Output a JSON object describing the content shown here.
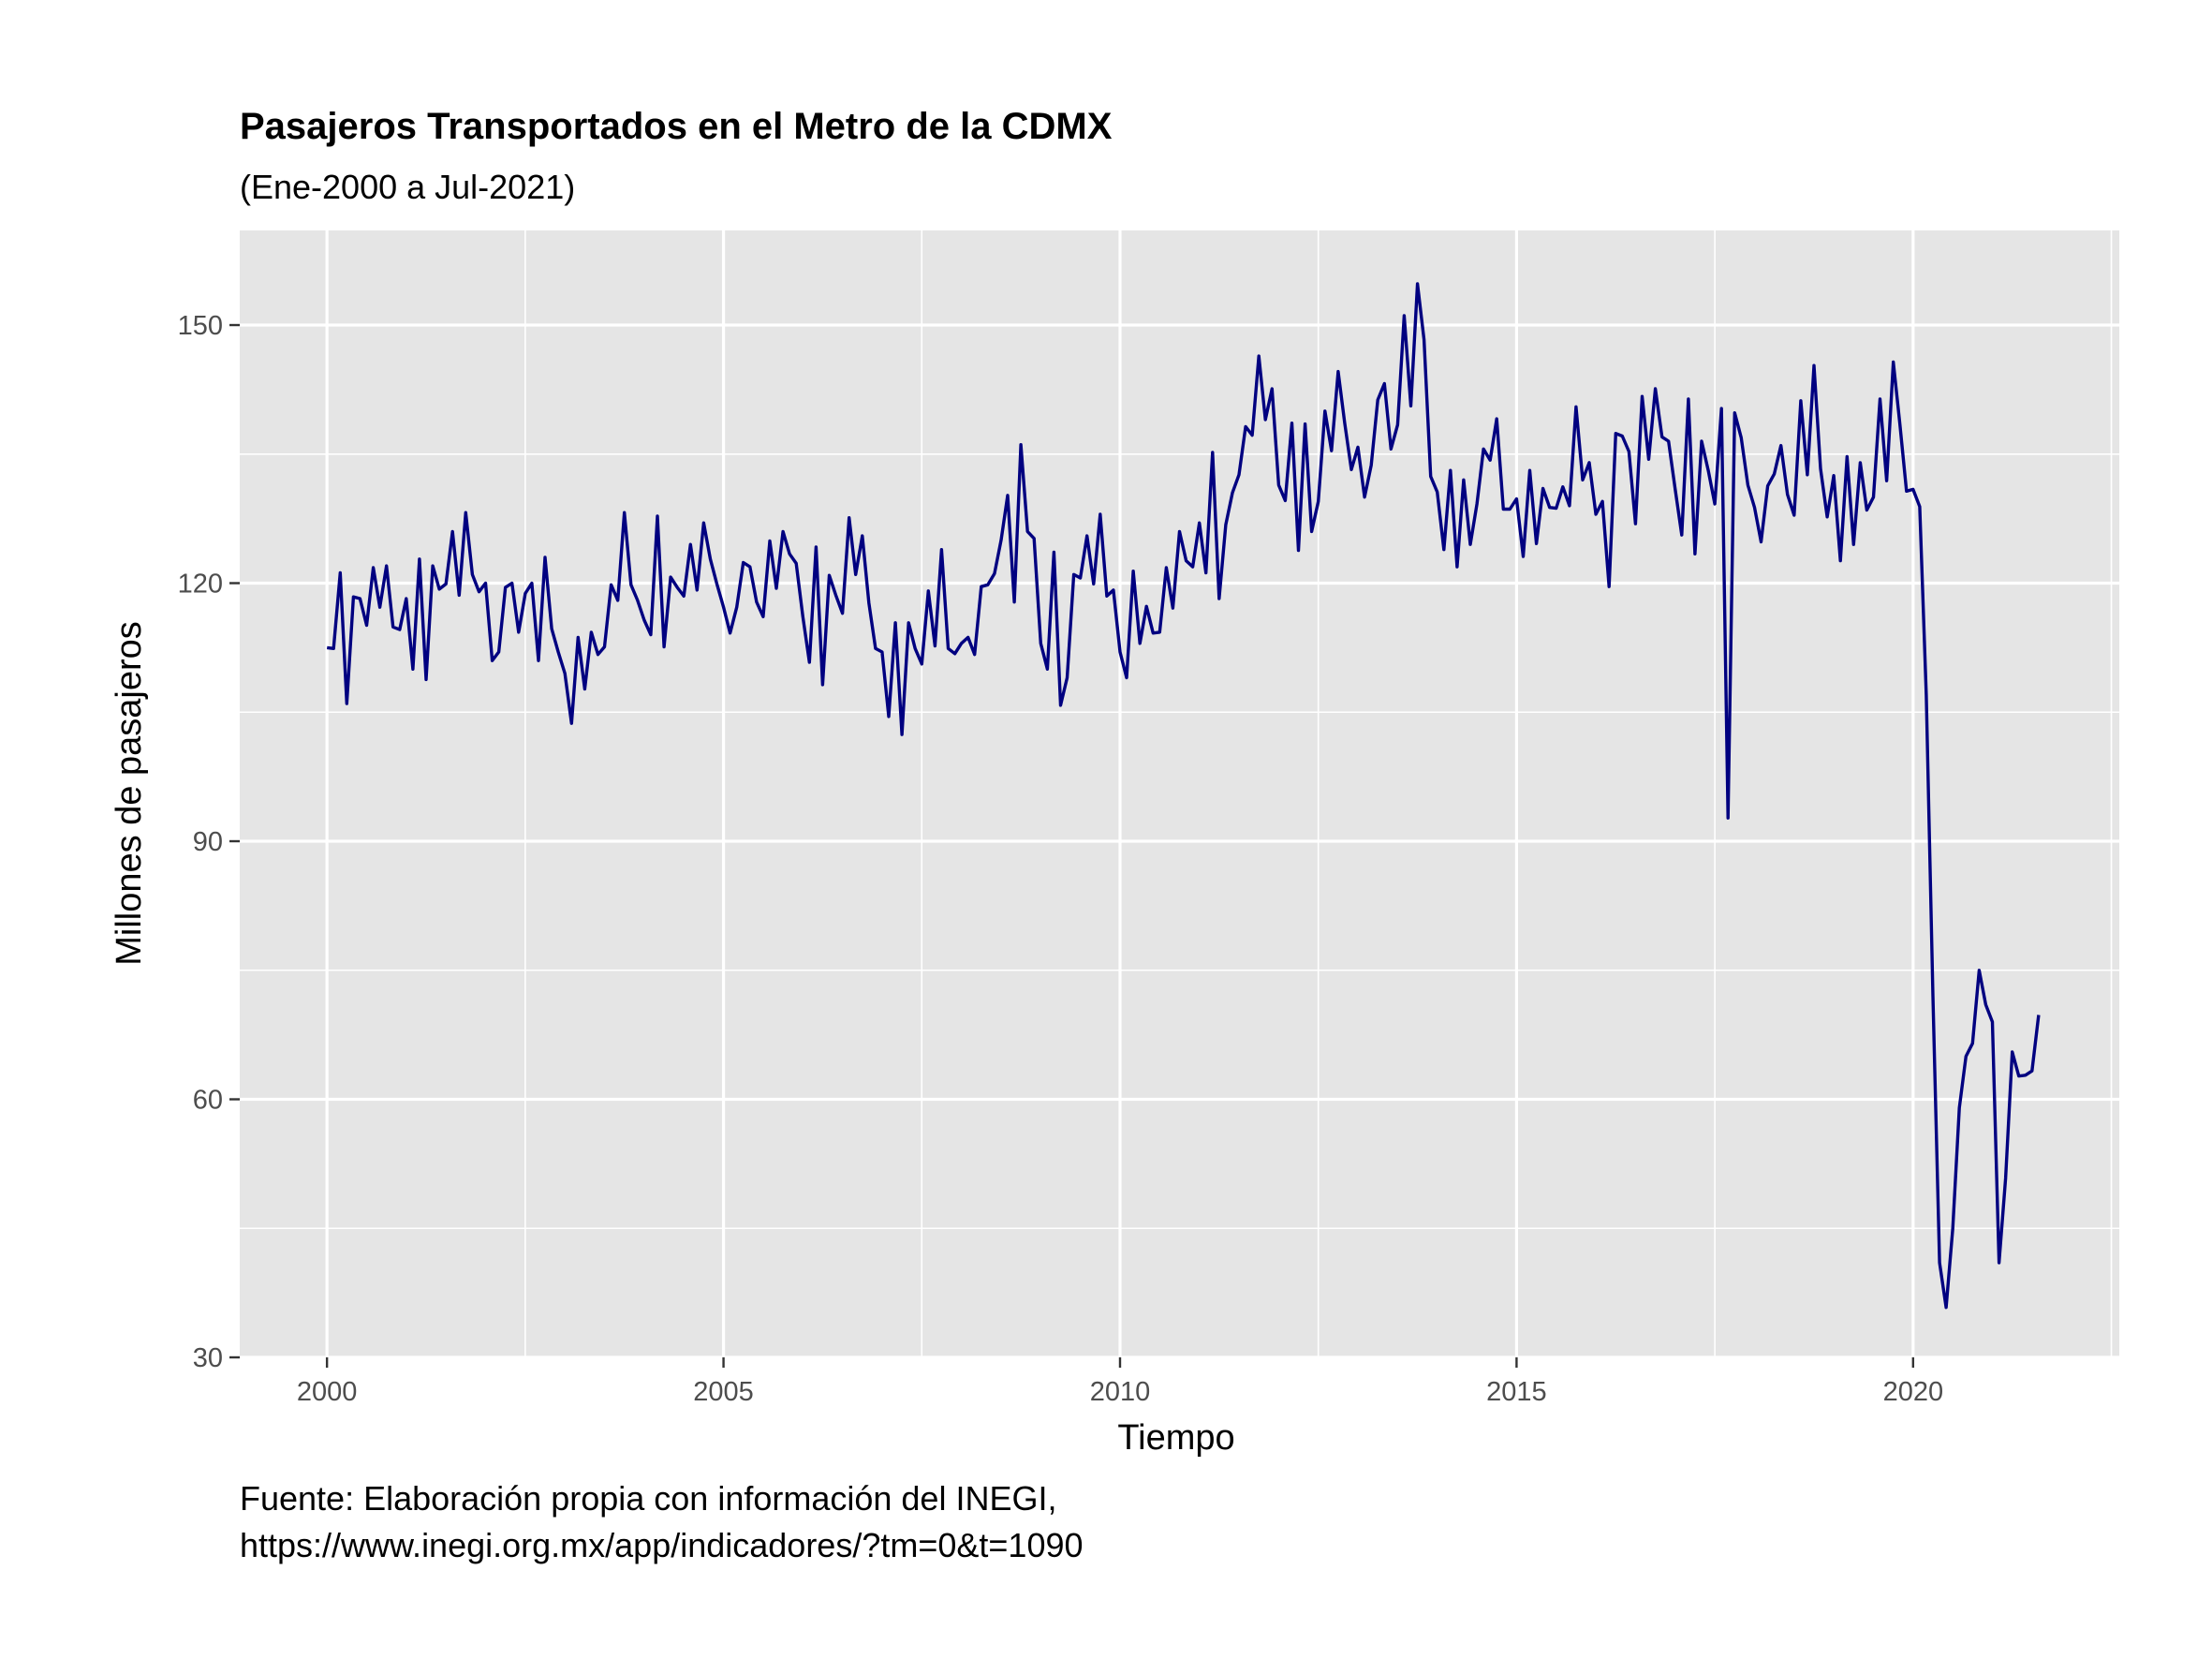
{
  "chart_data": {
    "type": "line",
    "title": "Pasajeros Transportados en el Metro de la CDMX",
    "subtitle": "(Ene-2000 a Jul-2021)",
    "xlabel": "Tiempo",
    "ylabel": "Millones de pasajeros",
    "caption_lines": [
      "Fuente: Elaboración propia con información del INEGI,",
      "https://www.inegi.org.mx/app/indicadores/?tm=0&t=1090"
    ],
    "x_ticks": [
      "2000",
      "2005",
      "2010",
      "2015",
      "2020"
    ],
    "y_ticks": [
      "30",
      "60",
      "90",
      "120",
      "150"
    ],
    "xlim": [
      1998.9,
      2022.6
    ],
    "ylim": [
      30,
      161
    ],
    "grid": true,
    "background": "#e5e5e5",
    "line_color": "#000080",
    "x_start": "2000-01",
    "x_end": "2021-07",
    "frequency": "monthly",
    "y": [
      112.5,
      112.4,
      121.2,
      106.0,
      118.4,
      118.2,
      115.1,
      121.8,
      117.2,
      122.0,
      114.9,
      114.6,
      118.2,
      110.0,
      122.8,
      108.8,
      122.0,
      119.3,
      119.9,
      126.0,
      118.6,
      128.2,
      121.0,
      119.0,
      120.0,
      111.0,
      112.0,
      119.5,
      120.0,
      114.3,
      118.8,
      120.0,
      111.0,
      123.0,
      114.7,
      112.0,
      109.5,
      103.7,
      113.7,
      107.7,
      114.3,
      111.7,
      112.6,
      119.8,
      118.0,
      128.2,
      119.8,
      118.0,
      115.7,
      114.0,
      127.8,
      112.6,
      120.7,
      119.5,
      118.5,
      124.5,
      119.2,
      127.0,
      122.8,
      119.9,
      117.2,
      114.2,
      117.2,
      122.4,
      121.9,
      117.8,
      116.1,
      124.9,
      119.4,
      126.0,
      123.4,
      122.3,
      116.1,
      110.8,
      124.2,
      108.2,
      120.9,
      118.6,
      116.5,
      127.6,
      121.0,
      125.5,
      117.7,
      112.4,
      112.0,
      104.5,
      115.4,
      102.4,
      115.4,
      112.4,
      110.6,
      119.1,
      112.7,
      123.9,
      112.4,
      111.8,
      113.0,
      113.7,
      111.7,
      119.6,
      119.8,
      121.1,
      125.0,
      130.2,
      117.8,
      136.1,
      126.0,
      125.2,
      113.0,
      110.0,
      123.6,
      105.8,
      109.0,
      121.0,
      120.6,
      125.5,
      119.9,
      128.0,
      118.5,
      119.2,
      112.0,
      109.0,
      121.4,
      113.0,
      117.3,
      114.2,
      114.3,
      121.8,
      117.1,
      126.0,
      122.6,
      121.9,
      127.0,
      121.2,
      135.2,
      118.2,
      126.8,
      130.5,
      132.6,
      138.2,
      137.2,
      146.4,
      139.0,
      142.6,
      131.4,
      129.6,
      138.6,
      123.8,
      138.5,
      126.0,
      129.5,
      140.0,
      135.4,
      144.6,
      138.6,
      133.2,
      135.8,
      130.0,
      133.7,
      141.3,
      143.2,
      135.6,
      138.4,
      151.1,
      140.6,
      154.8,
      148.3,
      132.4,
      130.6,
      123.9,
      133.1,
      121.9,
      132.0,
      124.5,
      129.2,
      135.6,
      134.3,
      139.1,
      128.6,
      128.6,
      129.8,
      123.1,
      133.1,
      124.6,
      131.0,
      128.8,
      128.7,
      131.2,
      129.0,
      140.5,
      132.0,
      134.0,
      128.0,
      129.5,
      119.6,
      137.4,
      137.1,
      135.3,
      126.9,
      141.7,
      134.4,
      142.6,
      137.0,
      136.5,
      130.9,
      125.6,
      141.4,
      123.4,
      136.5,
      133.1,
      129.2,
      140.3,
      92.7,
      139.8,
      136.9,
      131.4,
      128.8,
      124.8,
      131.3,
      132.7,
      136.0,
      130.3,
      127.9,
      141.2,
      132.6,
      145.3,
      133.3,
      127.7,
      132.5,
      122.6,
      134.7,
      124.5,
      134.0,
      128.5,
      130.0,
      141.4,
      131.9,
      145.7,
      138.5,
      130.7,
      130.9,
      128.9,
      107.0,
      72.0,
      41.0,
      35.8,
      45.0,
      59.0,
      65.0,
      66.5,
      75.0,
      71.0,
      69.0,
      41.0,
      50.8,
      65.5,
      62.7,
      62.8,
      63.3,
      69.8
    ]
  }
}
